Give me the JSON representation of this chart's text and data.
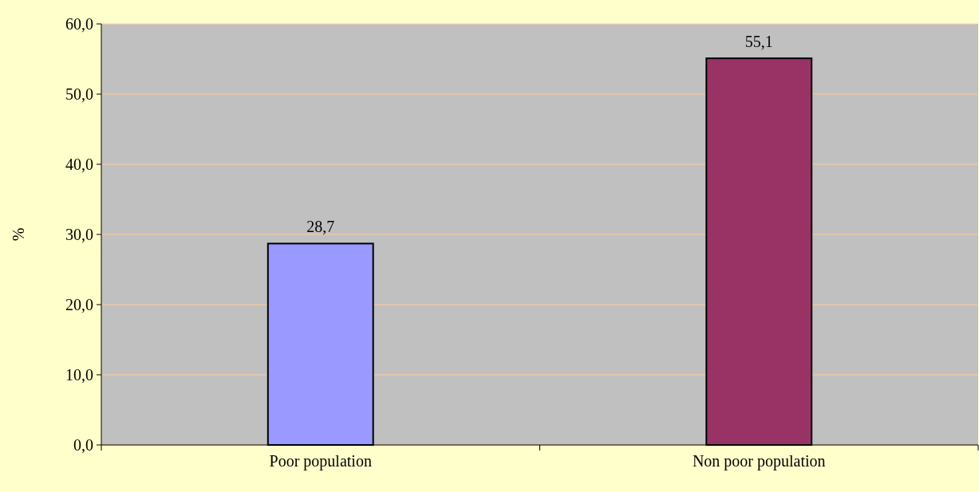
{
  "chart_data": {
    "type": "bar",
    "ylabel": "%",
    "categories": [
      "Poor population",
      "Non poor population"
    ],
    "values": [
      28.7,
      55.1
    ],
    "colors": [
      "#9999ff",
      "#993366"
    ],
    "value_labels": [
      "28,7",
      "55,1"
    ],
    "ylim": [
      0,
      60
    ],
    "yticks": [
      {
        "value": 0,
        "label": "0,0"
      },
      {
        "value": 10,
        "label": "10,0"
      },
      {
        "value": 20,
        "label": "20,0"
      },
      {
        "value": 30,
        "label": "30,0"
      },
      {
        "value": 40,
        "label": "40,0"
      },
      {
        "value": 50,
        "label": "50,0"
      },
      {
        "value": 60,
        "label": "60,0"
      }
    ],
    "grid": "y"
  }
}
